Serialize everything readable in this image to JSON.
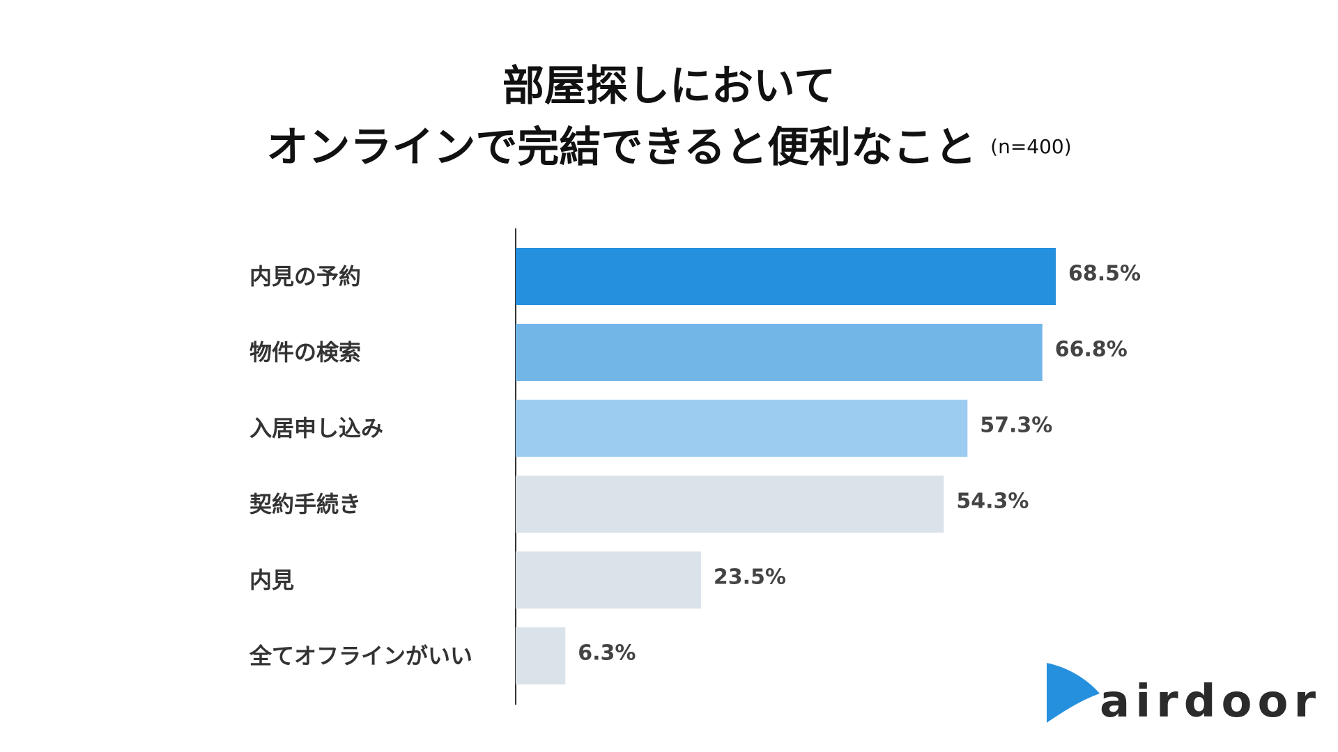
{
  "chart_data": {
    "type": "bar",
    "orientation": "horizontal",
    "title_line1": "部屋探しにおいて",
    "title_line2": "オンラインで完結できると便利なこと",
    "sample_note": "(n=400)",
    "categories": [
      "内見の予約",
      "物件の検索",
      "入居申し込み",
      "契約手続き",
      "内見",
      "全てオフラインがいい"
    ],
    "values": [
      68.5,
      66.8,
      57.3,
      54.3,
      23.5,
      6.3
    ],
    "value_labels": [
      "68.5%",
      "66.8%",
      "57.3%",
      "54.3%",
      "23.5%",
      "6.3%"
    ],
    "bar_colors": [
      "#2590dd",
      "#72b6e8",
      "#9dccf1",
      "#dbe3ea",
      "#dbe3ea",
      "#dbe3ea"
    ],
    "xlim": [
      0,
      100
    ],
    "grid": false,
    "legend": "none"
  },
  "brand": {
    "name": "airdoor",
    "logo_color": "#2590dd",
    "text_color": "#2b2b2b"
  }
}
